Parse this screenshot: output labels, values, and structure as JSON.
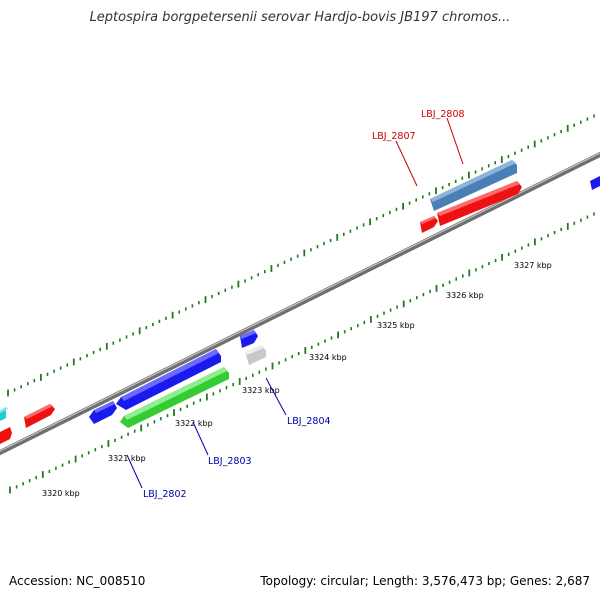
{
  "title": "Leptospira borgpetersenii serovar Hardjo-bovis JB197 chromos...",
  "footer": {
    "accession": "Accession: NC_008510",
    "topology": "Topology: circular; Length: 3,576,473 bp; Genes: 2,687"
  },
  "colors": {
    "backbone": "#8a8a8a",
    "tick": "#1e7a1e",
    "forward_label": "#cc0000",
    "reverse_label": "#0000aa",
    "red_gene": "#ee1111",
    "blue_gene": "#1a1aee",
    "steel_gene": "#4a7fb5",
    "green_gene": "#33cc33",
    "gray_gene": "#c8c8c8",
    "cyan_gene": "#22cccc"
  },
  "ruler": {
    "unit": "kbp",
    "labels": [
      "3320 kbp",
      "3321 kbp",
      "3322 kbp",
      "3323 kbp",
      "3324 kbp",
      "3325 kbp",
      "3326 kbp",
      "3327 kbp"
    ]
  },
  "genes": [
    {
      "label": "LBJ_2808",
      "color_name": "steel_gene",
      "strand": "forward"
    },
    {
      "label": "LBJ_2807",
      "color_name": "red_gene",
      "strand": "forward"
    },
    {
      "label": "LBJ_2802",
      "color_name": "blue_gene",
      "strand": "reverse"
    },
    {
      "label": "LBJ_2803",
      "color_name": "green_gene",
      "strand": "reverse"
    },
    {
      "label": "LBJ_2804",
      "color_name": "gray_gene",
      "strand": "reverse"
    }
  ]
}
